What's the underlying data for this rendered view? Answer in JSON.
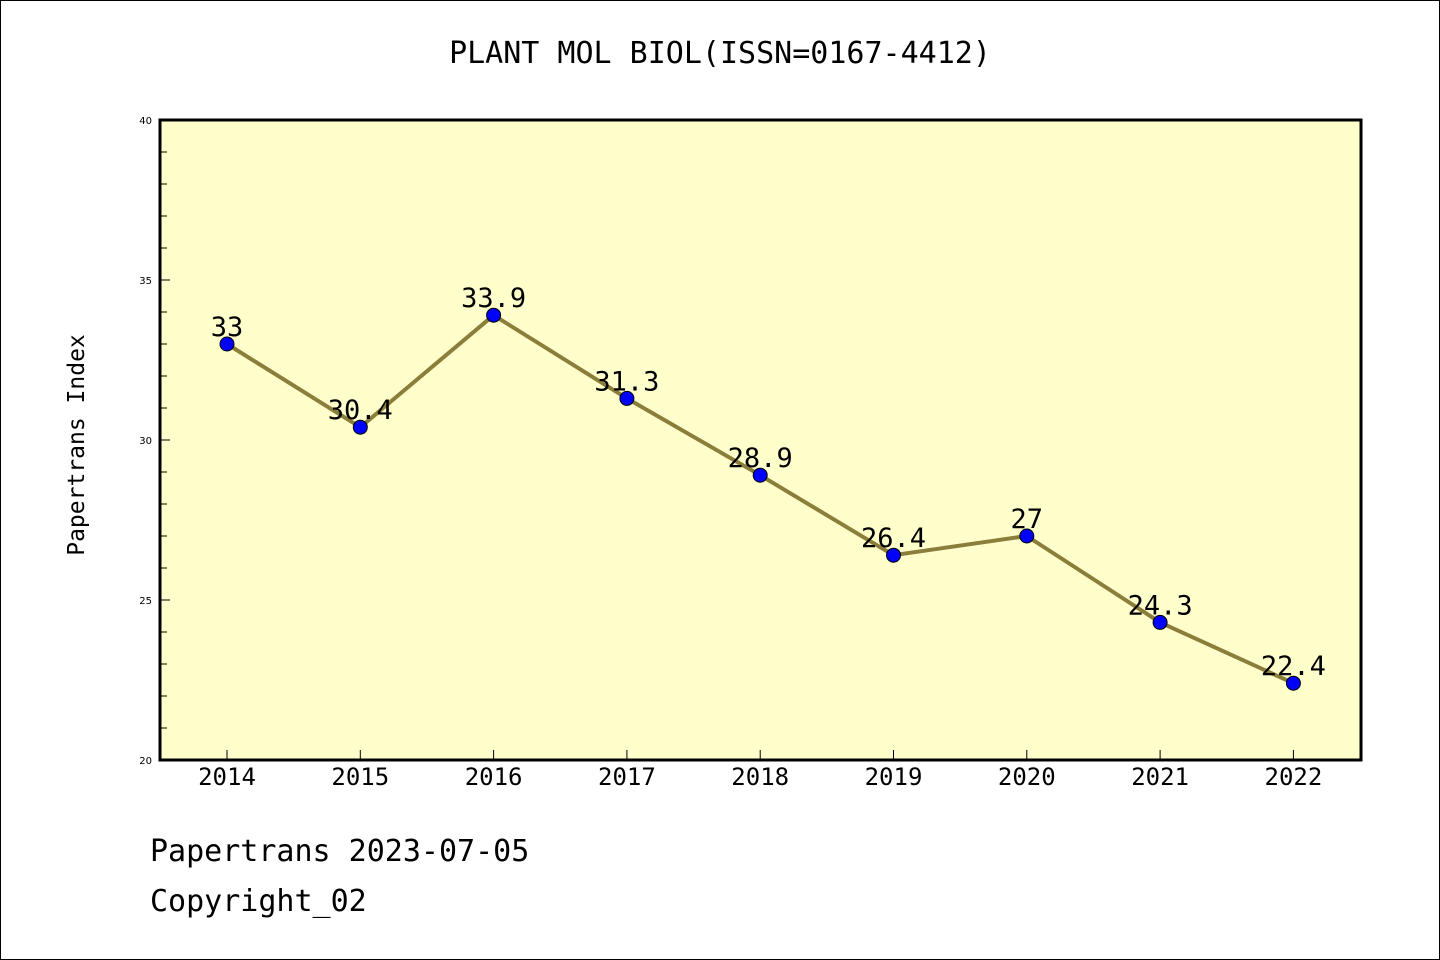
{
  "title": "PLANT MOL BIOL(ISSN=0167-4412)",
  "footer": {
    "line1": "Papertrans 2023-07-05",
    "line2": "Copyright_02"
  },
  "chart_data": {
    "type": "line",
    "title": "PLANT MOL BIOL(ISSN=0167-4412)",
    "xlabel": "",
    "ylabel": "Papertrans Index",
    "categories": [
      "2014",
      "2015",
      "2016",
      "2017",
      "2018",
      "2019",
      "2020",
      "2021",
      "2022"
    ],
    "series": [
      {
        "values": [
          33,
          30.4,
          33.9,
          31.3,
          28.9,
          26.4,
          27,
          24.3,
          22.4
        ],
        "labels": [
          "33",
          "30.4",
          "33.9",
          "31.3",
          "28.9",
          "26.4",
          "27",
          "24.3",
          "22.4"
        ]
      }
    ],
    "ylim": [
      20,
      40
    ],
    "yticks": [
      20,
      25,
      30,
      35,
      40
    ],
    "grid": false,
    "colors": {
      "plot_background": "#ffffcc",
      "line": "#8b7d3a",
      "marker": "#0000ff"
    }
  }
}
